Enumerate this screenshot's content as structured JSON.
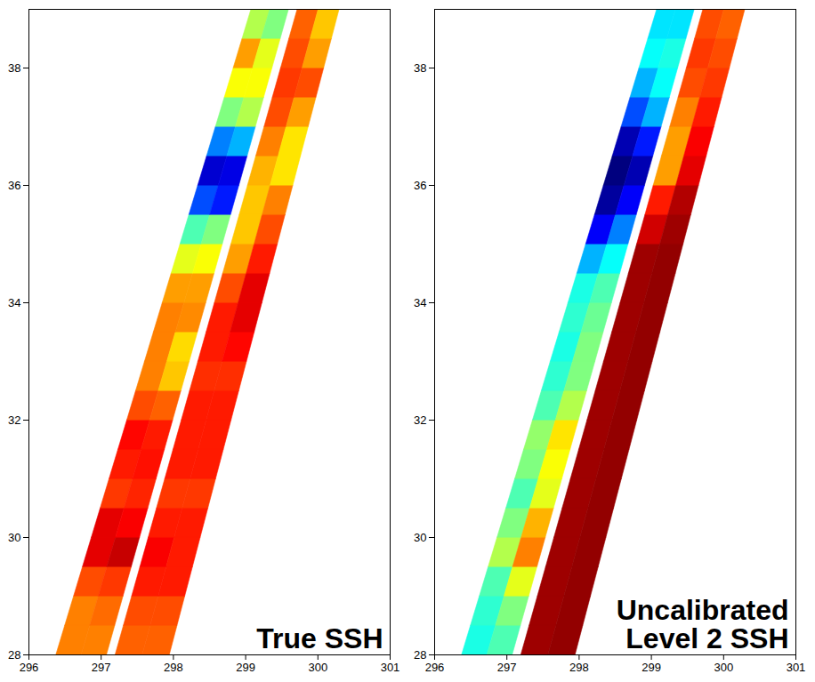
{
  "chart_data": [
    {
      "type": "heatmap",
      "annotation": "True SSH",
      "xlim": [
        296,
        301
      ],
      "xticks": [
        296,
        297,
        298,
        299,
        300,
        301
      ],
      "ylim": [
        28,
        39
      ],
      "yticks": [
        28,
        30,
        32,
        34,
        36,
        38
      ],
      "value_range": [
        0,
        1
      ],
      "y_edges": [
        28,
        28.5,
        29,
        29.5,
        30,
        30.5,
        31,
        31.5,
        32,
        32.5,
        33,
        33.5,
        34,
        34.5,
        35,
        35.5,
        36,
        36.5,
        37,
        37.5,
        38,
        38.5,
        39
      ],
      "swaths": [
        {
          "west_edge": [
            296.38,
            299.08
          ],
          "east_edge": [
            297.08,
            299.6
          ],
          "values": [
            [
              0.75,
              0.75
            ],
            [
              0.75,
              0.77
            ],
            [
              0.8,
              0.82
            ],
            [
              0.9,
              0.93
            ],
            [
              0.9,
              0.88
            ],
            [
              0.82,
              0.84
            ],
            [
              0.85,
              0.86
            ],
            [
              0.87,
              0.85
            ],
            [
              0.8,
              0.78
            ],
            [
              0.75,
              0.68
            ],
            [
              0.75,
              0.66
            ],
            [
              0.75,
              0.74
            ],
            [
              0.72,
              0.72
            ],
            [
              0.6,
              0.62
            ],
            [
              0.45,
              0.5
            ],
            [
              0.2,
              0.15
            ],
            [
              0.08,
              0.1
            ],
            [
              0.25,
              0.3
            ],
            [
              0.5,
              0.55
            ],
            [
              0.62,
              0.62
            ],
            [
              0.72,
              0.6
            ],
            [
              0.55,
              0.5
            ]
          ]
        },
        {
          "west_edge": [
            297.2,
            299.72
          ],
          "east_edge": [
            297.95,
            300.3
          ],
          "values": [
            [
              0.78,
              0.78
            ],
            [
              0.8,
              0.8
            ],
            [
              0.85,
              0.85
            ],
            [
              0.88,
              0.85
            ],
            [
              0.85,
              0.85
            ],
            [
              0.82,
              0.82
            ],
            [
              0.85,
              0.85
            ],
            [
              0.85,
              0.85
            ],
            [
              0.85,
              0.85
            ],
            [
              0.83,
              0.83
            ],
            [
              0.85,
              0.87
            ],
            [
              0.85,
              0.9
            ],
            [
              0.8,
              0.9
            ],
            [
              0.72,
              0.85
            ],
            [
              0.68,
              0.8
            ],
            [
              0.68,
              0.75
            ],
            [
              0.7,
              0.65
            ],
            [
              0.75,
              0.65
            ],
            [
              0.8,
              0.72
            ],
            [
              0.82,
              0.8
            ],
            [
              0.8,
              0.72
            ],
            [
              0.78,
              0.68
            ]
          ]
        }
      ]
    },
    {
      "type": "heatmap",
      "annotation": "Uncalibrated Level 2 SSH",
      "xlim": [
        296,
        301
      ],
      "xticks": [
        296,
        297,
        298,
        299,
        300,
        301
      ],
      "ylim": [
        28,
        39
      ],
      "yticks": [
        28,
        30,
        32,
        34,
        36,
        38
      ],
      "value_range": [
        0,
        1
      ],
      "y_edges": [
        28,
        28.5,
        29,
        29.5,
        30,
        30.5,
        31,
        31.5,
        32,
        32.5,
        33,
        33.5,
        34,
        34.5,
        35,
        35.5,
        36,
        36.5,
        37,
        37.5,
        38,
        38.5,
        39
      ],
      "swaths": [
        {
          "west_edge": [
            296.38,
            299.08
          ],
          "east_edge": [
            297.08,
            299.6
          ],
          "values": [
            [
              0.4,
              0.45
            ],
            [
              0.42,
              0.5
            ],
            [
              0.45,
              0.6
            ],
            [
              0.55,
              0.75
            ],
            [
              0.5,
              0.7
            ],
            [
              0.45,
              0.6
            ],
            [
              0.5,
              0.62
            ],
            [
              0.52,
              0.65
            ],
            [
              0.45,
              0.55
            ],
            [
              0.42,
              0.5
            ],
            [
              0.4,
              0.5
            ],
            [
              0.42,
              0.48
            ],
            [
              0.4,
              0.45
            ],
            [
              0.3,
              0.38
            ],
            [
              0.12,
              0.25
            ],
            [
              0.03,
              0.12
            ],
            [
              0,
              0.05
            ],
            [
              0.05,
              0.15
            ],
            [
              0.2,
              0.3
            ],
            [
              0.3,
              0.38
            ],
            [
              0.38,
              0.4
            ],
            [
              0.35,
              0.35
            ]
          ]
        },
        {
          "west_edge": [
            297.2,
            299.72
          ],
          "east_edge": [
            297.95,
            300.3
          ],
          "values": [
            [
              0.97,
              0.98
            ],
            [
              0.97,
              0.98
            ],
            [
              0.97,
              0.98
            ],
            [
              0.97,
              0.98
            ],
            [
              0.97,
              0.98
            ],
            [
              0.97,
              0.98
            ],
            [
              0.97,
              0.98
            ],
            [
              0.97,
              0.98
            ],
            [
              0.97,
              0.98
            ],
            [
              0.97,
              0.98
            ],
            [
              0.97,
              0.98
            ],
            [
              0.97,
              0.98
            ],
            [
              0.97,
              0.98
            ],
            [
              0.97,
              0.98
            ],
            [
              0.92,
              0.97
            ],
            [
              0.85,
              0.95
            ],
            [
              0.72,
              0.9
            ],
            [
              0.72,
              0.88
            ],
            [
              0.75,
              0.85
            ],
            [
              0.8,
              0.82
            ],
            [
              0.82,
              0.8
            ],
            [
              0.8,
              0.78
            ]
          ]
        }
      ]
    }
  ]
}
